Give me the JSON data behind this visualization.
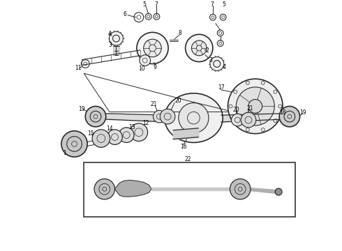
{
  "bg_color": "#ffffff",
  "line_color": "#2a2a2a",
  "fig_width": 4.9,
  "fig_height": 3.6,
  "dpi": 100
}
